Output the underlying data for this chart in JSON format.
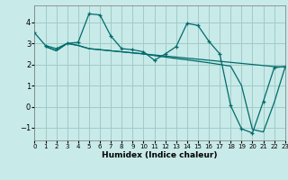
{
  "xlabel": "Humidex (Indice chaleur)",
  "bg_color": "#c8eae8",
  "grid_color": "#a0ccc8",
  "line_color": "#006b6b",
  "xlim": [
    0,
    23
  ],
  "ylim": [
    -1.6,
    4.8
  ],
  "yticks": [
    -1,
    0,
    1,
    2,
    3,
    4
  ],
  "xticks": [
    0,
    1,
    2,
    3,
    4,
    5,
    6,
    7,
    8,
    9,
    10,
    11,
    12,
    13,
    14,
    15,
    16,
    17,
    18,
    19,
    20,
    21,
    22,
    23
  ],
  "line1_x": [
    0,
    1,
    2,
    3,
    4,
    5,
    6,
    7,
    8,
    9,
    10,
    11,
    12,
    13,
    14,
    15,
    16,
    17,
    18,
    19,
    20,
    21,
    22,
    23
  ],
  "line1_y": [
    3.5,
    2.9,
    2.75,
    3.0,
    3.05,
    4.4,
    4.35,
    3.35,
    2.75,
    2.7,
    2.6,
    2.2,
    2.5,
    2.85,
    3.95,
    3.85,
    3.1,
    2.5,
    0.05,
    -1.05,
    -1.25,
    0.25,
    1.85,
    1.9
  ],
  "line2_x": [
    1,
    2,
    3,
    4,
    5,
    6,
    7,
    8,
    9,
    10,
    11,
    12,
    13,
    14,
    15,
    16,
    17,
    18,
    19,
    20,
    21,
    22,
    23
  ],
  "line2_y": [
    2.85,
    2.65,
    3.0,
    2.9,
    2.75,
    2.7,
    2.65,
    2.6,
    2.55,
    2.5,
    2.45,
    2.4,
    2.35,
    2.3,
    2.25,
    2.2,
    2.15,
    2.1,
    2.05,
    2.0,
    1.95,
    1.9,
    1.88
  ],
  "line3_x": [
    1,
    2,
    3,
    4,
    5,
    6,
    7,
    8,
    9,
    10,
    11,
    12,
    13,
    14,
    15,
    16,
    17,
    18,
    19,
    20,
    21,
    22,
    23
  ],
  "line3_y": [
    2.85,
    2.65,
    3.0,
    2.9,
    2.75,
    2.7,
    2.65,
    2.6,
    2.55,
    2.5,
    2.42,
    2.35,
    2.28,
    2.22,
    2.15,
    2.08,
    2.0,
    1.92,
    1.0,
    -1.08,
    -1.2,
    0.2,
    1.88
  ]
}
